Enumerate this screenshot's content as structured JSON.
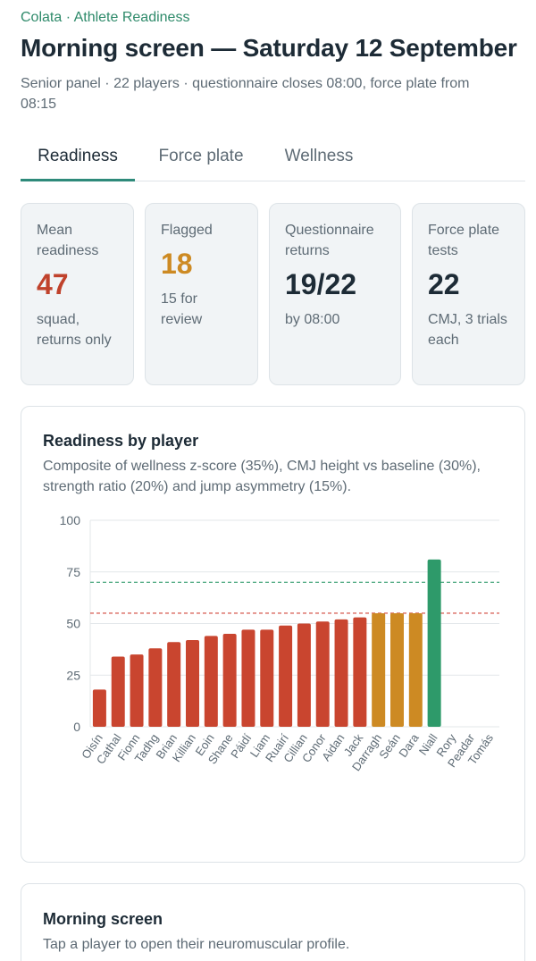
{
  "header": {
    "breadcrumb": "Colata · Athlete Readiness",
    "title": "Morning screen — Saturday 12 September",
    "subtitle": "Senior panel · 22 players · questionnaire closes 08:00, force plate from 08:15"
  },
  "tabs": [
    {
      "label": "Readiness",
      "active": true
    },
    {
      "label": "Force plate",
      "active": false
    },
    {
      "label": "Wellness",
      "active": false
    }
  ],
  "kpis": [
    {
      "label": "Mean readiness",
      "value": "47",
      "sub": "squad, returns only",
      "color": "#c0422c"
    },
    {
      "label": "Flagged",
      "value": "18",
      "sub": "15 for review",
      "color": "#cd8a23"
    },
    {
      "label": "Questionnaire returns",
      "value": "19/22",
      "sub": "by 08:00",
      "color": "#1d2b36"
    },
    {
      "label": "Force plate tests",
      "value": "22",
      "sub": "CMJ, 3 trials each",
      "color": "#1d2b36"
    }
  ],
  "chart_card": {
    "title": "Readiness by player",
    "subtitle": "Composite of wellness z-score (35%), CMJ height vs baseline (30%), strength ratio (20%) and jump asymmetry (15%)."
  },
  "chart_data": {
    "type": "bar",
    "categories": [
      "Oisín",
      "Cathal",
      "Fionn",
      "Tadhg",
      "Brian",
      "Killian",
      "Eoin",
      "Shane",
      "Páidí",
      "Liam",
      "Ruairí",
      "Cillian",
      "Conor",
      "Aidan",
      "Jack",
      "Darragh",
      "Seán",
      "Dara",
      "Niall",
      "Rory",
      "Peadar",
      "Tomás"
    ],
    "values": [
      18,
      34,
      35,
      38,
      41,
      42,
      44,
      45,
      47,
      47,
      49,
      50,
      51,
      52,
      53,
      55,
      55,
      55,
      81,
      null,
      null,
      null
    ],
    "ylim": [
      0,
      100
    ],
    "yticks": [
      0,
      25,
      50,
      75,
      100
    ],
    "thresholds": [
      {
        "value": 70,
        "color": "#2e9a6a"
      },
      {
        "value": 55,
        "color": "#d0463a"
      }
    ],
    "colors": {
      "low": "#c9452f",
      "mid": "#cd8a23",
      "high": "#2e9a6a"
    },
    "grid": true
  },
  "screen_card": {
    "title": "Morning screen",
    "subtitle": "Tap a player to open their neuromuscular profile."
  }
}
